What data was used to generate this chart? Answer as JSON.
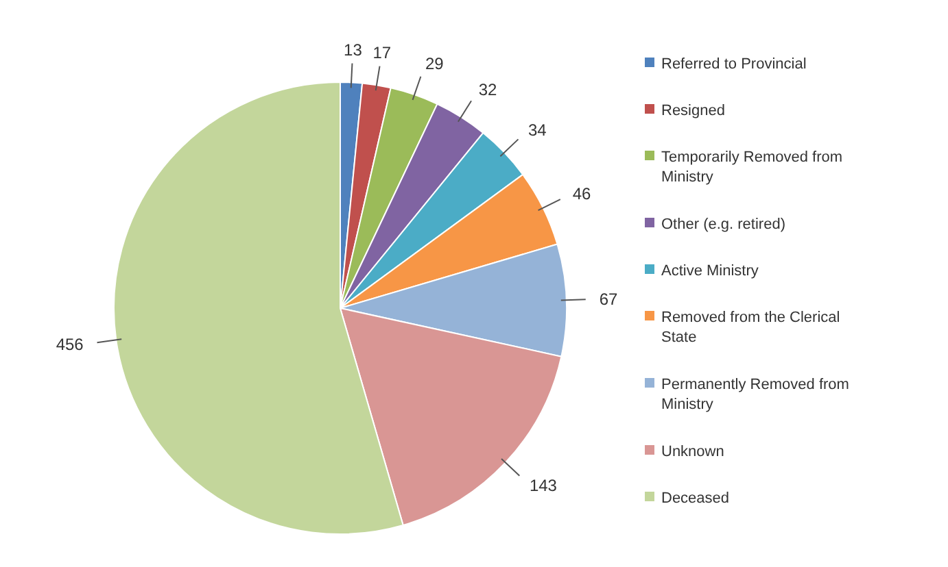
{
  "chart_data": {
    "type": "pie",
    "categories": [
      "Referred to Provincial",
      "Resigned",
      "Temporarily Removed from Ministry",
      "Other (e.g. retired)",
      "Active Ministry",
      "Removed from the Clerical State",
      "Permanently Removed from Ministry",
      "Unknown",
      "Deceased"
    ],
    "values": [
      13,
      17,
      29,
      32,
      34,
      46,
      67,
      143,
      456
    ],
    "colors": [
      "#4f81bd",
      "#c0504d",
      "#9bbb59",
      "#8064a2",
      "#4bacc6",
      "#f79646",
      "#95b3d7",
      "#d99694",
      "#c3d69b"
    ],
    "data_labels": true,
    "legend": "right"
  }
}
